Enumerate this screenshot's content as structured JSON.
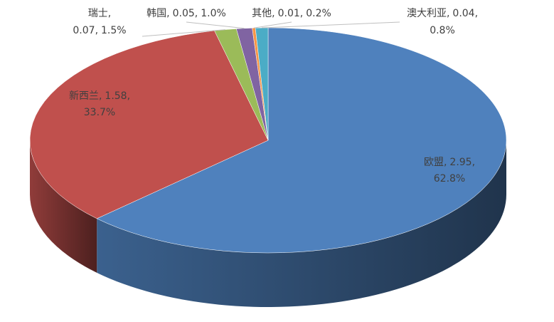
{
  "chart_data": {
    "type": "pie3d",
    "categories": [
      "欧盟",
      "新西兰",
      "瑞士",
      "韩国",
      "其他",
      "澳大利亚"
    ],
    "values": [
      2.95,
      1.58,
      0.07,
      0.05,
      0.01,
      0.04
    ],
    "percent_labels": [
      "62.8%",
      "33.7%",
      "1.5%",
      "1.0%",
      "0.2%",
      "0.8%"
    ],
    "separator": ",",
    "colors": [
      "#4f81bd",
      "#c0504d",
      "#9bbb59",
      "#8064a2",
      "#f79646",
      "#4bacc6"
    ]
  }
}
